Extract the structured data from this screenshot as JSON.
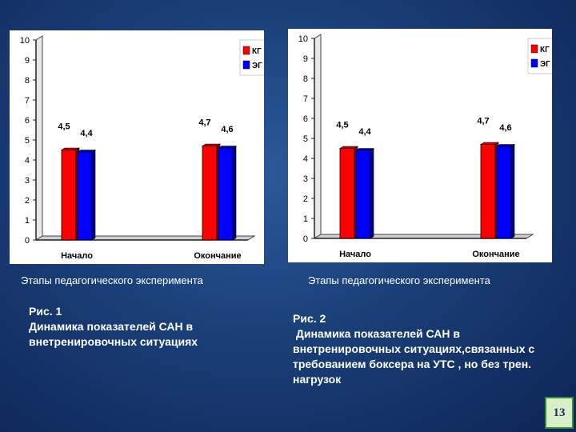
{
  "chart_data": [
    {
      "type": "bar",
      "categories": [
        "Начало",
        "Окончание"
      ],
      "series": [
        {
          "name": "КГ",
          "values": [
            4.5,
            4.7
          ],
          "labels": [
            "4,5",
            "4,7"
          ],
          "color": "#ff0000"
        },
        {
          "name": "ЭГ",
          "values": [
            4.4,
            4.6
          ],
          "labels": [
            "4,4",
            "4,6"
          ],
          "color": "#0000ff"
        }
      ],
      "ylim": [
        0,
        10
      ],
      "yticks": [
        "0",
        "1",
        "2",
        "3",
        "4",
        "5",
        "6",
        "7",
        "8",
        "9",
        "10"
      ],
      "xlabel": "Этапы педагогического эксперимента",
      "legend": "top-right",
      "grid": false
    },
    {
      "type": "bar",
      "categories": [
        "Начало",
        "Окончание"
      ],
      "series": [
        {
          "name": "КГ",
          "values": [
            4.5,
            4.7
          ],
          "labels": [
            "4,5",
            "4,7"
          ],
          "color": "#ff0000"
        },
        {
          "name": "ЭГ",
          "values": [
            4.4,
            4.6
          ],
          "labels": [
            "4,4",
            "4,6"
          ],
          "color": "#0000ff"
        }
      ],
      "ylim": [
        0,
        10
      ],
      "yticks": [
        "0",
        "1",
        "2",
        "3",
        "4",
        "5",
        "6",
        "7",
        "8",
        "9",
        "10"
      ],
      "xlabel": "Этапы педагогического эксперимента",
      "legend": "top-right",
      "grid": false
    }
  ],
  "captions": [
    {
      "lines": [
        "Рис. 1",
        "Динамика показателей САН в",
        "внетренировочных ситуациях"
      ]
    },
    {
      "lines": [
        "Рис. 2",
        " Динамика показателей САН в",
        "внетренировочных ситуациях,связанных с",
        "требованием боксера на УТС , но без трен.",
        "нагрузок"
      ]
    }
  ],
  "page_number": "13"
}
